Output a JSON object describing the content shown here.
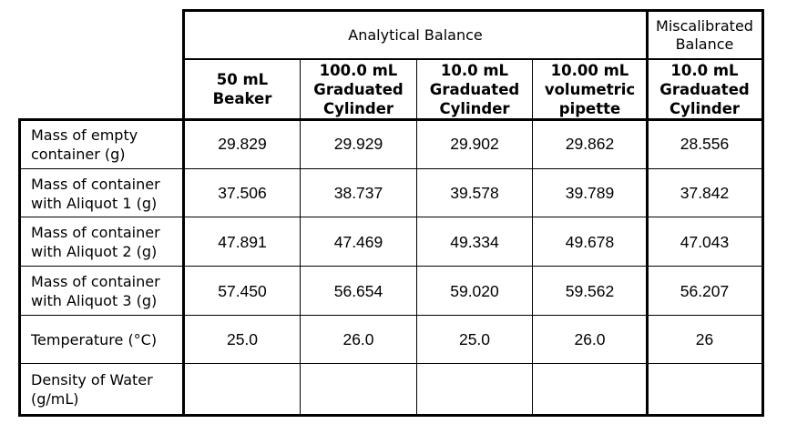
{
  "table": {
    "group_headers": {
      "analytical": "Analytical Balance",
      "miscalibrated": "Miscalibrated\nBalance"
    },
    "columns": [
      "50 mL\nBeaker",
      "100.0 mL\nGraduated\nCylinder",
      "10.0 mL\nGraduated\nCylinder",
      "10.00 mL\nvolumetric\npipette",
      "10.0 mL\nGraduated\nCylinder"
    ],
    "rows": [
      {
        "label": "Mass of empty\ncontainer (g)",
        "values": [
          "29.829",
          "29.929",
          "29.902",
          "29.862",
          "28.556"
        ]
      },
      {
        "label": "Mass of container\nwith Aliquot 1 (g)",
        "values": [
          "37.506",
          "38.737",
          "39.578",
          "39.789",
          "37.842"
        ]
      },
      {
        "label": "Mass of container\nwith Aliquot 2 (g)",
        "values": [
          "47.891",
          "47.469",
          "49.334",
          "49.678",
          "47.043"
        ]
      },
      {
        "label": "Mass of container\nwith Aliquot 3 (g)",
        "values": [
          "57.450",
          "56.654",
          "59.020",
          "59.562",
          "56.207"
        ]
      },
      {
        "label": "Temperature (°C)",
        "values": [
          "25.0",
          "26.0",
          "25.0",
          "26.0",
          "26"
        ]
      },
      {
        "label": "Density of Water\n(g/mL)",
        "values": [
          "",
          "",
          "",
          "",
          ""
        ]
      }
    ]
  }
}
